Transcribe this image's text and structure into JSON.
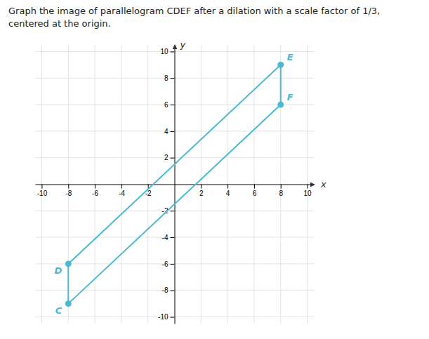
{
  "chart_data": {
    "type": "line",
    "title": "Graph the image of parallelogram CDEF after a dilation with a scale factor of 1/3, centered at the origin.",
    "x_label": "x",
    "y_label": "y",
    "series": [
      {
        "type": "line",
        "color": "#4db8d4",
        "x": [
          -8,
          -8,
          8,
          8,
          -8
        ],
        "values": [
          -9,
          -6,
          9,
          6,
          -9
        ]
      },
      {
        "type": "scatter",
        "color": "#4db8d4",
        "x": [
          -8,
          -8,
          8,
          8
        ],
        "values": [
          -9,
          -6,
          9,
          6
        ]
      }
    ],
    "annotations": [
      {
        "text": "C",
        "x": -8,
        "y": -9
      },
      {
        "text": "D",
        "x": -8,
        "y": -6
      },
      {
        "text": "E",
        "x": 8,
        "y": 9
      },
      {
        "text": "F",
        "x": 8,
        "y": 6
      }
    ],
    "xlim": [
      -10.5,
      10.5
    ],
    "ylim": [
      -10.5,
      10.5
    ],
    "xticks": [
      -10,
      -8,
      -6,
      -4,
      -2,
      2,
      4,
      6,
      8,
      10
    ],
    "yticks": [
      -10,
      -8,
      -6,
      -4,
      -2,
      2,
      4,
      6,
      8,
      10
    ],
    "grid": true
  }
}
